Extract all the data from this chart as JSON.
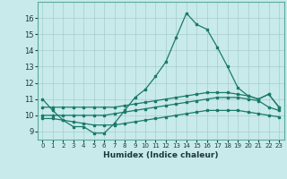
{
  "xlabel": "Humidex (Indice chaleur)",
  "xlim": [
    -0.5,
    23.5
  ],
  "ylim": [
    8.5,
    17.0
  ],
  "yticks": [
    9,
    10,
    11,
    12,
    13,
    14,
    15,
    16
  ],
  "xticks": [
    0,
    1,
    2,
    3,
    4,
    5,
    6,
    7,
    8,
    9,
    10,
    11,
    12,
    13,
    14,
    15,
    16,
    17,
    18,
    19,
    20,
    21,
    22,
    23
  ],
  "bg_color": "#c8eaea",
  "grid_color": "#a8cccc",
  "line_color": "#1a7a6a",
  "series": [
    {
      "x": [
        0,
        1,
        2,
        3,
        4,
        5,
        6,
        7,
        8,
        9,
        10,
        11,
        12,
        13,
        14,
        15,
        16,
        17,
        18,
        19,
        20,
        21,
        22,
        23
      ],
      "y": [
        11.0,
        10.3,
        9.7,
        9.3,
        9.3,
        8.9,
        8.9,
        9.5,
        10.3,
        11.1,
        11.6,
        12.4,
        13.3,
        14.8,
        16.3,
        15.6,
        15.3,
        14.2,
        13.0,
        11.7,
        11.2,
        11.0,
        11.3,
        10.5
      ]
    },
    {
      "x": [
        0,
        1,
        2,
        3,
        4,
        5,
        6,
        7,
        8,
        9,
        10,
        11,
        12,
        13,
        14,
        15,
        16,
        17,
        18,
        19,
        20,
        21,
        22,
        23
      ],
      "y": [
        10.5,
        10.5,
        10.5,
        10.5,
        10.5,
        10.5,
        10.5,
        10.5,
        10.6,
        10.7,
        10.8,
        10.9,
        11.0,
        11.1,
        11.2,
        11.3,
        11.4,
        11.4,
        11.4,
        11.3,
        11.2,
        11.0,
        11.3,
        10.5
      ]
    },
    {
      "x": [
        0,
        1,
        2,
        3,
        4,
        5,
        6,
        7,
        8,
        9,
        10,
        11,
        12,
        13,
        14,
        15,
        16,
        17,
        18,
        19,
        20,
        21,
        22,
        23
      ],
      "y": [
        10.0,
        10.0,
        10.0,
        10.0,
        10.0,
        10.0,
        10.0,
        10.1,
        10.2,
        10.3,
        10.4,
        10.5,
        10.6,
        10.7,
        10.8,
        10.9,
        11.0,
        11.1,
        11.1,
        11.1,
        11.0,
        10.9,
        10.5,
        10.3
      ]
    },
    {
      "x": [
        0,
        1,
        2,
        3,
        4,
        5,
        6,
        7,
        8,
        9,
        10,
        11,
        12,
        13,
        14,
        15,
        16,
        17,
        18,
        19,
        20,
        21,
        22,
        23
      ],
      "y": [
        9.8,
        9.8,
        9.7,
        9.6,
        9.5,
        9.4,
        9.4,
        9.4,
        9.5,
        9.6,
        9.7,
        9.8,
        9.9,
        10.0,
        10.1,
        10.2,
        10.3,
        10.3,
        10.3,
        10.3,
        10.2,
        10.1,
        10.0,
        9.9
      ]
    }
  ]
}
